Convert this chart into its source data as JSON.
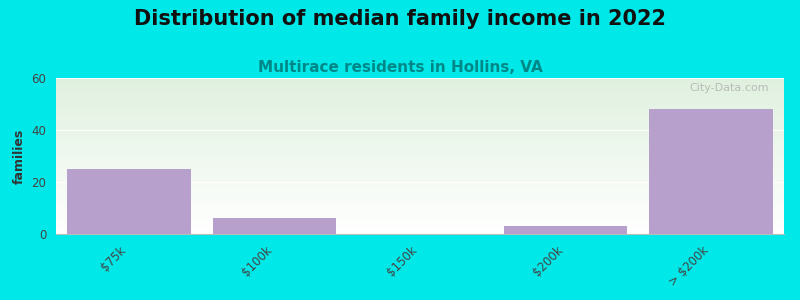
{
  "title": "Distribution of median family income in 2022",
  "subtitle": "Multirace residents in Hollins, VA",
  "categories": [
    "$75k",
    "$100k",
    "$150k",
    "$200k",
    "> $200k"
  ],
  "values": [
    25,
    6,
    0,
    3,
    48
  ],
  "bar_color": "#b8a0cc",
  "background_color": "#00e8e8",
  "plot_bg_color_top": "#dff0de",
  "plot_bg_color_bottom": "#ffffff",
  "ylabel": "families",
  "ylim": [
    0,
    60
  ],
  "yticks": [
    0,
    20,
    40,
    60
  ],
  "title_fontsize": 15,
  "title_color": "#111111",
  "subtitle_fontsize": 11,
  "subtitle_color": "#008888",
  "watermark": "City-Data.com",
  "tick_label_fontsize": 8.5,
  "ylabel_fontsize": 9
}
